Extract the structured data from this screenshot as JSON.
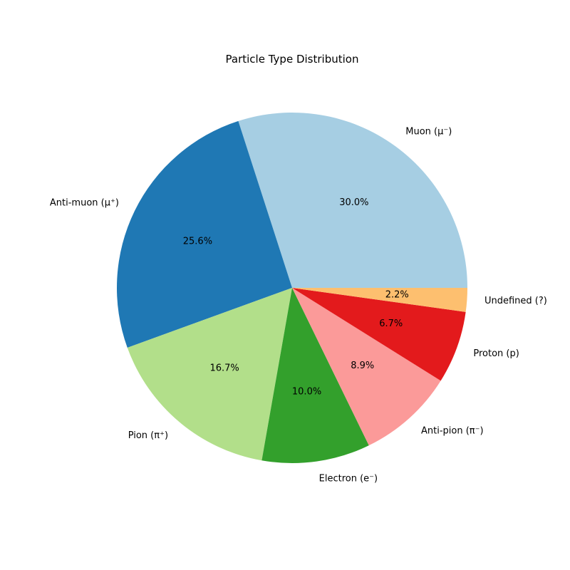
{
  "chart_data": {
    "type": "pie",
    "title": "Particle Type Distribution",
    "start_angle_deg": 0,
    "direction": "counterclockwise",
    "slices": [
      {
        "label": "Muon (μ⁻)",
        "value": 30.0,
        "pct_text": "30.0%",
        "color": "#a6cee3"
      },
      {
        "label": "Anti-muon (μ⁺)",
        "value": 25.6,
        "pct_text": "25.6%",
        "color": "#1f78b4"
      },
      {
        "label": "Pion (π⁺)",
        "value": 16.7,
        "pct_text": "16.7%",
        "color": "#b2df8a"
      },
      {
        "label": "Electron (e⁻)",
        "value": 10.0,
        "pct_text": "10.0%",
        "color": "#33a02c"
      },
      {
        "label": "Anti-pion (π⁻)",
        "value": 8.9,
        "pct_text": "8.9%",
        "color": "#fb9a99"
      },
      {
        "label": "Proton (p)",
        "value": 6.7,
        "pct_text": "6.7%",
        "color": "#e31a1c"
      },
      {
        "label": "Undefined (?)",
        "value": 2.2,
        "pct_text": "2.2%",
        "color": "#fdbf6f"
      }
    ]
  }
}
